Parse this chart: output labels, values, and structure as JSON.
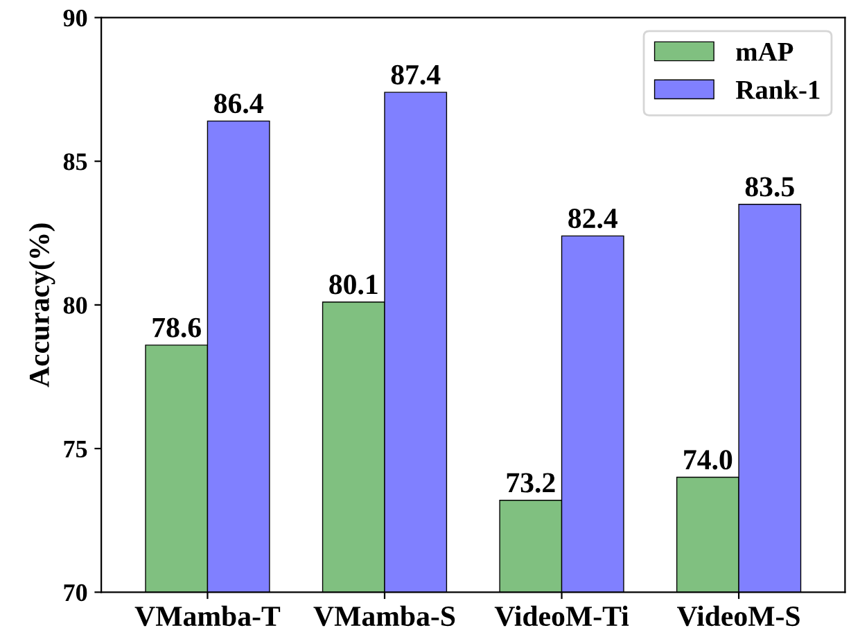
{
  "chart_data": {
    "type": "bar",
    "ylabel": "Accuracy(%)",
    "categories": [
      "VMamba-T",
      "VMamba-S",
      "VideoM-Ti",
      "VideoM-S"
    ],
    "series": [
      {
        "name": "mAP",
        "color": "#80c080",
        "values": [
          78.6,
          80.1,
          73.2,
          74.0
        ],
        "value_labels": [
          "78.6",
          "80.1",
          "73.2",
          "74.0"
        ]
      },
      {
        "name": "Rank-1",
        "color": "#8080ff",
        "values": [
          86.4,
          87.4,
          82.4,
          83.5
        ],
        "value_labels": [
          "86.4",
          "87.4",
          "82.4",
          "83.5"
        ]
      }
    ],
    "ylim": [
      70,
      90
    ],
    "yticks": [
      70,
      75,
      80,
      85,
      90
    ],
    "grid": false,
    "legend": "top right"
  }
}
